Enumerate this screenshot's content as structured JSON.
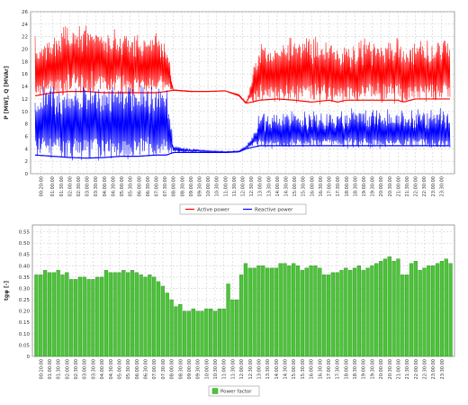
{
  "chart_data": [
    {
      "type": "line",
      "title": "",
      "xlabel": "",
      "ylabel": "P [MW], Q [MVAr]",
      "ylim": [
        0,
        26
      ],
      "yticks": [
        0,
        2,
        4,
        6,
        8,
        10,
        12,
        14,
        16,
        18,
        20,
        22,
        24,
        26
      ],
      "grid": true,
      "legend_position": "bottom",
      "x_labels": [
        "00:20:00",
        "01:00:00",
        "01:30:00",
        "02:00:00",
        "02:30:00",
        "03:00:00",
        "03:30:00",
        "04:00:00",
        "04:30:00",
        "05:00:00",
        "05:30:00",
        "06:00:00",
        "06:30:00",
        "07:00:00",
        "07:30:00",
        "08:00:00",
        "08:30:00",
        "09:00:00",
        "09:30:00",
        "10:00:00",
        "10:30:00",
        "11:00:00",
        "11:30:00",
        "12:00:00",
        "12:30:00",
        "13:00:00",
        "13:30:00",
        "14:00:00",
        "14:30:00",
        "15:00:00",
        "15:30:00",
        "16:00:00",
        "16:30:00",
        "17:00:00",
        "17:30:00",
        "18:00:00",
        "18:30:00",
        "19:00:00",
        "19:30:00",
        "20:00:00",
        "20:30:00",
        "21:00:00",
        "21:30:00",
        "22:00:00",
        "22:30:00",
        "23:00:00",
        "23:30:00"
      ],
      "series": [
        {
          "name": "Active power",
          "color": "#ff0000",
          "hours": [
            0,
            1,
            2,
            3,
            4,
            5,
            6,
            7,
            7.6,
            8,
            9,
            10,
            11,
            11.8,
            12.2,
            13,
            14,
            15,
            16,
            17,
            17.5,
            18,
            19,
            20,
            21,
            21.3,
            22,
            23,
            23.9
          ],
          "lower": [
            12.5,
            13,
            13.2,
            13.2,
            13,
            13,
            13,
            13,
            13.2,
            13.4,
            13.2,
            13.2,
            13.3,
            12.5,
            11.3,
            11.8,
            12,
            11.8,
            11.5,
            11.8,
            11.5,
            11.8,
            11.8,
            11.8,
            11.8,
            11.5,
            12,
            12,
            12
          ],
          "upper": [
            20,
            21,
            22.5,
            23,
            22,
            22,
            21,
            21,
            20,
            13.5,
            13.3,
            13.2,
            13.3,
            12.8,
            11.5,
            19.5,
            19.5,
            20,
            20.5,
            19.5,
            19,
            19.5,
            20,
            20,
            20,
            19.5,
            19.5,
            20,
            20.5
          ]
        },
        {
          "name": "Reactive power",
          "color": "#0000ff",
          "hours": [
            0,
            1,
            2,
            3,
            4,
            5,
            6,
            7,
            7.6,
            8,
            9,
            10,
            11,
            11.8,
            12.2,
            13,
            14,
            15,
            16,
            17,
            17.5,
            18,
            19,
            20,
            21,
            21.3,
            22,
            23,
            23.9
          ],
          "lower": [
            3,
            2.8,
            2.6,
            2.5,
            2.6,
            2.8,
            2.8,
            3,
            3,
            3.4,
            3.4,
            3.4,
            3.4,
            3.5,
            4,
            4.5,
            4.5,
            4.5,
            4.5,
            4.5,
            4.5,
            4.5,
            4.5,
            4.5,
            4.5,
            4.5,
            4.5,
            4.5,
            4.5
          ],
          "upper": [
            12,
            12.2,
            12.5,
            12.5,
            12.3,
            12.5,
            12.5,
            12.5,
            12.5,
            4.5,
            4,
            3.8,
            3.6,
            3.7,
            4.5,
            8,
            8,
            8,
            8.5,
            8.2,
            8.2,
            8.5,
            8.5,
            8.5,
            8.5,
            8.5,
            8.5,
            8.5,
            8.5
          ]
        }
      ]
    },
    {
      "type": "bar",
      "title": "",
      "xlabel": "",
      "ylabel": "tgφ [-]",
      "ylim": [
        0,
        0.58
      ],
      "yticks": [
        0,
        0.05,
        0.1,
        0.15,
        0.2,
        0.25,
        0.3,
        0.35,
        0.4,
        0.45,
        0.5,
        0.55
      ],
      "ytick_labels": [
        "0",
        "0.05",
        "0.10",
        "0.15",
        "0.20",
        "0.25",
        "0.30",
        "0.35",
        "0.40",
        "0.45",
        "0.50",
        "0.55"
      ],
      "grid": true,
      "legend_position": "bottom",
      "x_labels": [
        "00:20:00",
        "01:00:00",
        "01:30:00",
        "02:00:00",
        "02:30:00",
        "03:00:00",
        "03:30:00",
        "04:00:00",
        "04:30:00",
        "05:00:00",
        "05:30:00",
        "06:00:00",
        "06:30:00",
        "07:00:00",
        "07:30:00",
        "08:00:00",
        "08:30:00",
        "09:00:00",
        "09:30:00",
        "10:00:00",
        "10:30:00",
        "11:00:00",
        "11:30:00",
        "12:00:00",
        "12:30:00",
        "13:00:00",
        "13:30:00",
        "14:00:00",
        "14:30:00",
        "15:00:00",
        "15:30:00",
        "16:00:00",
        "16:30:00",
        "17:00:00",
        "17:30:00",
        "18:00:00",
        "18:30:00",
        "19:00:00",
        "19:30:00",
        "20:00:00",
        "20:30:00",
        "21:00:00",
        "21:30:00",
        "22:00:00",
        "22:30:00",
        "23:00:00",
        "23:30:00"
      ],
      "series": [
        {
          "name": "Power factor",
          "color": "#4cc43a",
          "values": [
            0.36,
            0.36,
            0.38,
            0.37,
            0.37,
            0.38,
            0.36,
            0.37,
            0.34,
            0.34,
            0.35,
            0.35,
            0.34,
            0.34,
            0.35,
            0.35,
            0.38,
            0.37,
            0.37,
            0.37,
            0.38,
            0.37,
            0.38,
            0.37,
            0.36,
            0.35,
            0.36,
            0.35,
            0.33,
            0.31,
            0.28,
            0.25,
            0.22,
            0.23,
            0.2,
            0.2,
            0.21,
            0.2,
            0.2,
            0.21,
            0.21,
            0.2,
            0.21,
            0.21,
            0.32,
            0.25,
            0.25,
            0.36,
            0.41,
            0.39,
            0.39,
            0.4,
            0.4,
            0.39,
            0.39,
            0.39,
            0.41,
            0.41,
            0.4,
            0.41,
            0.4,
            0.38,
            0.39,
            0.4,
            0.4,
            0.39,
            0.36,
            0.36,
            0.37,
            0.37,
            0.38,
            0.39,
            0.38,
            0.39,
            0.4,
            0.38,
            0.39,
            0.4,
            0.41,
            0.42,
            0.43,
            0.44,
            0.42,
            0.43,
            0.36,
            0.36,
            0.41,
            0.42,
            0.38,
            0.39,
            0.4,
            0.4,
            0.41,
            0.42,
            0.43,
            0.41
          ]
        }
      ]
    }
  ]
}
